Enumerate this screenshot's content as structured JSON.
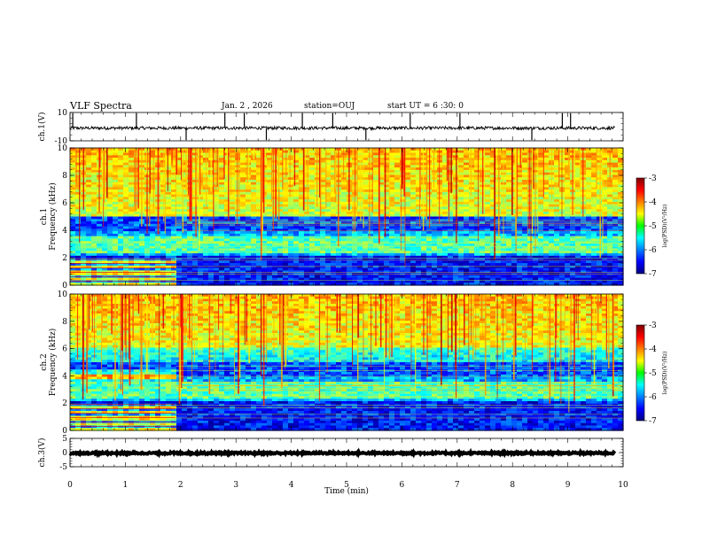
{
  "header": {
    "title": "VLF Spectra",
    "date": "Jan. 2 , 2026",
    "station": "station=OUJ",
    "start": "start UT = 6 :30: 0"
  },
  "chart_data": [
    {
      "type": "line",
      "name": "ch1-waveform",
      "ylabel": "ch.1(V)",
      "ylim": [
        -10,
        10
      ],
      "yticks": [
        "10",
        "-10"
      ],
      "baseline": -1,
      "spike_times_min": [
        0.05,
        1.2,
        2.1,
        2.8,
        3.15,
        3.55,
        4.2,
        4.75,
        5.35,
        6.15,
        7.05,
        8.35,
        8.9,
        9.05
      ]
    },
    {
      "type": "heatmap",
      "name": "ch1-spectrogram",
      "ylabel": "ch.1 Frequency (kHz)",
      "ylim": [
        0,
        10
      ],
      "yticks": [
        "0",
        "2",
        "4",
        "6",
        "8",
        "10"
      ],
      "colorbar": {
        "label": "log(PSD)(V²/Hz)",
        "range": [
          -7,
          -3
        ],
        "ticks": [
          "-3",
          "-4",
          "-5",
          "-6",
          "-7"
        ]
      },
      "transition_min": 1.9
    },
    {
      "type": "heatmap",
      "name": "ch2-spectrogram",
      "ylabel": "ch.2 Frequency (kHz)",
      "ylim": [
        0,
        10
      ],
      "yticks": [
        "0",
        "2",
        "4",
        "6",
        "8",
        "10"
      ],
      "colorbar": {
        "label": "log(PSD)(V²/Hz)",
        "range": [
          -7,
          -3
        ],
        "ticks": [
          "-3",
          "-4",
          "-5",
          "-6",
          "-7"
        ]
      },
      "transition_min": 1.9
    },
    {
      "type": "line",
      "name": "ch3-waveform",
      "ylabel": "ch.3(V)",
      "ylim": [
        -5,
        5
      ],
      "yticks": [
        "5",
        "0",
        "-5"
      ],
      "baseline": -0.2
    }
  ],
  "xaxis": {
    "label": "Time (min)",
    "xlim": [
      0,
      10
    ],
    "ticks": [
      "0",
      "1",
      "2",
      "3",
      "4",
      "5",
      "6",
      "7",
      "8",
      "9",
      "10"
    ]
  }
}
